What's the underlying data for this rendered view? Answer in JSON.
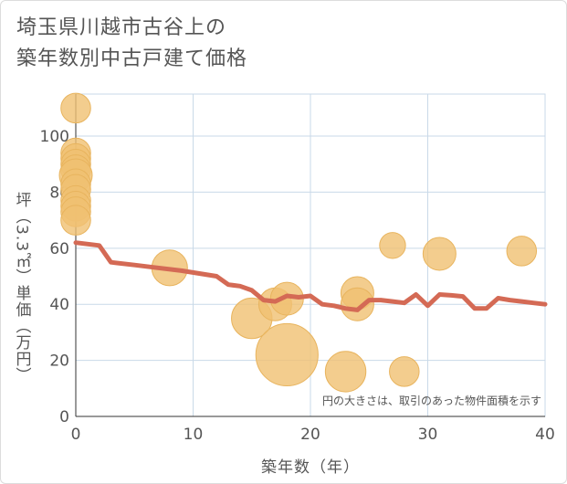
{
  "title_line1": "埼玉県川越市古谷上の",
  "title_line2": "築年数別中古戸建て価格",
  "chart_data": {
    "type": "scatter",
    "title": "埼玉県川越市古谷上の築年数別中古戸建て価格",
    "xlabel": "築年数（年）",
    "ylabel": "坪（3.3㎡）単価（万円）",
    "xlim": [
      0,
      40
    ],
    "ylim": [
      0,
      115
    ],
    "xticks": [
      0,
      10,
      20,
      30,
      40
    ],
    "yticks": [
      0,
      20,
      40,
      60,
      80,
      100
    ],
    "grid": true,
    "annotation": "円の大きさは、取引のあった物件面積を示す",
    "bubbles": [
      {
        "x": 0,
        "y": 110,
        "s": 3
      },
      {
        "x": 0,
        "y": 94,
        "s": 3
      },
      {
        "x": 0,
        "y": 92,
        "s": 3
      },
      {
        "x": 0,
        "y": 90,
        "s": 3
      },
      {
        "x": 0,
        "y": 88,
        "s": 3
      },
      {
        "x": 0,
        "y": 86,
        "s": 4
      },
      {
        "x": 0,
        "y": 83,
        "s": 3
      },
      {
        "x": 0,
        "y": 81,
        "s": 3
      },
      {
        "x": 0,
        "y": 77,
        "s": 3
      },
      {
        "x": 0,
        "y": 75,
        "s": 3
      },
      {
        "x": 0,
        "y": 73,
        "s": 3
      },
      {
        "x": 0,
        "y": 70,
        "s": 3
      },
      {
        "x": 8,
        "y": 53,
        "s": 5
      },
      {
        "x": 15,
        "y": 35,
        "s": 7
      },
      {
        "x": 17,
        "y": 40,
        "s": 4
      },
      {
        "x": 18,
        "y": 42,
        "s": 4
      },
      {
        "x": 18,
        "y": 22,
        "s": 20
      },
      {
        "x": 23,
        "y": 16,
        "s": 7
      },
      {
        "x": 24,
        "y": 44,
        "s": 4
      },
      {
        "x": 24,
        "y": 40,
        "s": 4
      },
      {
        "x": 27,
        "y": 61,
        "s": 2
      },
      {
        "x": 28,
        "y": 16,
        "s": 3
      },
      {
        "x": 31,
        "y": 58,
        "s": 4
      },
      {
        "x": 38,
        "y": 59,
        "s": 3
      }
    ],
    "series": [
      {
        "x": [
          0,
          2,
          3,
          5,
          7,
          9,
          12,
          13,
          14,
          15,
          16,
          17,
          18,
          19,
          20,
          21,
          22,
          23,
          24,
          25,
          26,
          27,
          28,
          29,
          30,
          31,
          32,
          33,
          34,
          35,
          36,
          37,
          38,
          39,
          40
        ],
        "y": [
          62,
          61,
          55,
          54,
          53,
          52,
          50,
          47,
          46.5,
          45,
          41.5,
          41,
          43,
          42.5,
          43,
          40,
          39.5,
          38.5,
          38,
          41.5,
          41.5,
          41,
          40.5,
          43.5,
          39.5,
          43.5,
          43.2,
          42.8,
          38.5,
          38.5,
          42.2,
          41.5,
          41,
          40.5,
          40
        ]
      }
    ],
    "colors": {
      "bubble": "#f0c072",
      "bubble_stroke": "#e8b45e",
      "line": "#d46a55",
      "grid": "#c9d9e8",
      "axis_text": "#555555"
    }
  }
}
